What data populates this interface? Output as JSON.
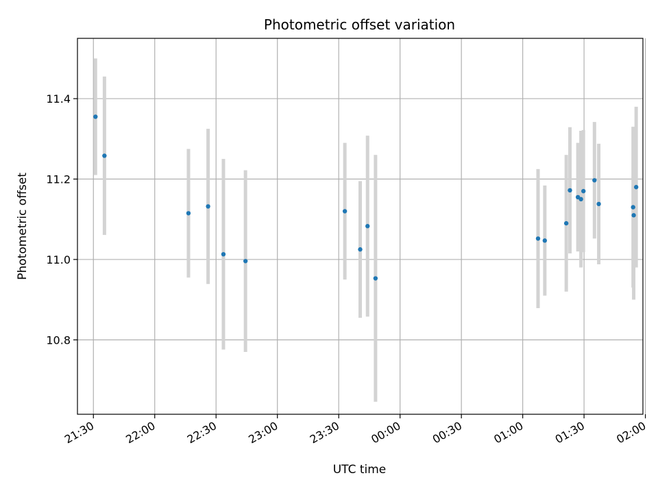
{
  "chart_data": {
    "type": "scatter",
    "title": "Photometric offset variation",
    "xlabel": "UTC time",
    "ylabel": "Photometric offset",
    "grid": true,
    "xlim": [
      -0.13,
      4.48
    ],
    "ylim": [
      10.615,
      11.55
    ],
    "x_ticks": [
      {
        "value": 0.0,
        "label": "21:30"
      },
      {
        "value": 0.5,
        "label": "22:00"
      },
      {
        "value": 1.0,
        "label": "22:30"
      },
      {
        "value": 1.5,
        "label": "23:00"
      },
      {
        "value": 2.0,
        "label": "23:30"
      },
      {
        "value": 2.5,
        "label": "00:00"
      },
      {
        "value": 3.0,
        "label": "00:30"
      },
      {
        "value": 3.5,
        "label": "01:00"
      },
      {
        "value": 4.0,
        "label": "01:30"
      },
      {
        "value": 4.5,
        "label": "02:00"
      }
    ],
    "y_ticks": [
      {
        "value": 10.8,
        "label": "10.8"
      },
      {
        "value": 11.0,
        "label": "11.0"
      },
      {
        "value": 11.2,
        "label": "11.2"
      },
      {
        "value": 11.4,
        "label": "11.4"
      }
    ],
    "colors": {
      "point": "#1f77b4",
      "errorbar": "#d3d3d3",
      "grid": "#b0b0b0"
    },
    "x_unit": "hours after 21:30 UTC",
    "points": [
      {
        "x": 0.017,
        "y": 11.355,
        "err": 0.145
      },
      {
        "x": 0.09,
        "y": 11.258,
        "err": 0.197
      },
      {
        "x": 0.775,
        "y": 11.115,
        "err": 0.16
      },
      {
        "x": 0.935,
        "y": 11.132,
        "err": 0.193
      },
      {
        "x": 1.06,
        "y": 11.013,
        "err": 0.237
      },
      {
        "x": 1.24,
        "y": 10.996,
        "err": 0.226
      },
      {
        "x": 2.05,
        "y": 11.12,
        "err": 0.17
      },
      {
        "x": 2.175,
        "y": 11.025,
        "err": 0.17
      },
      {
        "x": 2.235,
        "y": 11.083,
        "err": 0.225
      },
      {
        "x": 2.3,
        "y": 10.953,
        "err": 0.307
      },
      {
        "x": 3.625,
        "y": 11.052,
        "err": 0.173
      },
      {
        "x": 3.68,
        "y": 11.047,
        "err": 0.137
      },
      {
        "x": 3.855,
        "y": 11.09,
        "err": 0.17
      },
      {
        "x": 3.885,
        "y": 11.172,
        "err": 0.157
      },
      {
        "x": 3.95,
        "y": 11.155,
        "err": 0.135
      },
      {
        "x": 3.975,
        "y": 11.15,
        "err": 0.17
      },
      {
        "x": 3.995,
        "y": 11.17,
        "err": 0.152
      },
      {
        "x": 4.085,
        "y": 11.197,
        "err": 0.145
      },
      {
        "x": 4.12,
        "y": 11.138,
        "err": 0.15
      },
      {
        "x": 4.4,
        "y": 11.13,
        "err": 0.2
      },
      {
        "x": 4.405,
        "y": 11.11,
        "err": 0.21
      },
      {
        "x": 4.425,
        "y": 11.18,
        "err": 0.2
      }
    ]
  }
}
